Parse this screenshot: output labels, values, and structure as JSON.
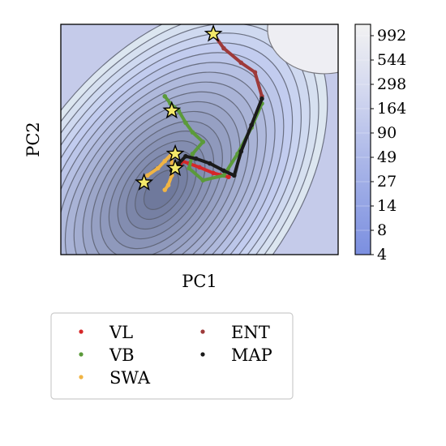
{
  "chart_data": {
    "type": "contour",
    "xlabel": "PC1",
    "ylabel": "PC2",
    "x_ticks_shown": false,
    "y_ticks_shown": false,
    "colorbar": {
      "ticks": [
        "4",
        "8",
        "14",
        "27",
        "49",
        "90",
        "164",
        "298",
        "544",
        "992"
      ],
      "scale": "log",
      "colormap": "coolwarm-low-half",
      "color_low": "#7b8fe0",
      "color_high": "#f0f0f0"
    },
    "legend": {
      "placement": "below-plot",
      "columns": 2,
      "entries": [
        {
          "label": "VL",
          "color": "#d62728"
        },
        {
          "label": "VB",
          "color": "#5b9a3a"
        },
        {
          "label": "SWA",
          "color": "#f0b444"
        },
        {
          "label": "ENT",
          "color": "#9e3a3a"
        },
        {
          "label": "MAP",
          "color": "#1a1a1a"
        }
      ]
    },
    "minimum_pc": [
      -0.35,
      -0.45
    ],
    "series": [
      {
        "name": "VL",
        "color": "#d62728",
        "points": [
          [
            -0.08,
            0.05
          ],
          [
            -0.05,
            0.15
          ],
          [
            0.05,
            0.1
          ],
          [
            0.2,
            0.02
          ],
          [
            0.4,
            -0.1
          ],
          [
            0.62,
            -0.18
          ]
        ]
      },
      {
        "name": "VB",
        "color": "#5b9a3a",
        "points": [
          [
            -0.3,
            1.5
          ],
          [
            -0.22,
            1.35
          ],
          [
            -0.1,
            1.2
          ],
          [
            0.0,
            0.95
          ],
          [
            0.1,
            0.75
          ],
          [
            0.25,
            0.55
          ],
          [
            0.1,
            0.3
          ],
          [
            0.05,
            0.0
          ],
          [
            0.25,
            -0.25
          ],
          [
            0.55,
            -0.15
          ],
          [
            0.75,
            0.3
          ],
          [
            0.95,
            0.85
          ],
          [
            1.1,
            1.35
          ]
        ]
      },
      {
        "name": "SWA",
        "color": "#f0b444",
        "points": [
          [
            -0.55,
            -0.15
          ],
          [
            -0.4,
            0.0
          ],
          [
            -0.3,
            0.15
          ],
          [
            -0.2,
            0.3
          ],
          [
            -0.2,
            -0.15
          ],
          [
            -0.25,
            -0.35
          ],
          [
            -0.3,
            -0.45
          ]
        ]
      },
      {
        "name": "ENT",
        "color": "#9e3a3a",
        "points": [
          [
            0.4,
            2.8
          ],
          [
            0.55,
            2.5
          ],
          [
            0.8,
            2.2
          ],
          [
            1.0,
            2.0
          ],
          [
            1.1,
            1.5
          ]
        ]
      },
      {
        "name": "MAP",
        "color": "#1a1a1a",
        "points": [
          [
            -0.2,
            -0.05
          ],
          [
            -0.1,
            0.1
          ],
          [
            0.0,
            0.25
          ],
          [
            0.15,
            0.2
          ],
          [
            0.35,
            0.1
          ],
          [
            0.55,
            -0.05
          ],
          [
            0.7,
            -0.15
          ],
          [
            0.8,
            0.35
          ],
          [
            0.95,
            0.9
          ],
          [
            1.1,
            1.45
          ]
        ]
      }
    ],
    "star_markers": [
      [
        0.4,
        2.8
      ],
      [
        -0.2,
        1.2
      ],
      [
        -0.15,
        0.3
      ],
      [
        -0.15,
        0.0
      ],
      [
        -0.6,
        -0.3
      ]
    ]
  }
}
